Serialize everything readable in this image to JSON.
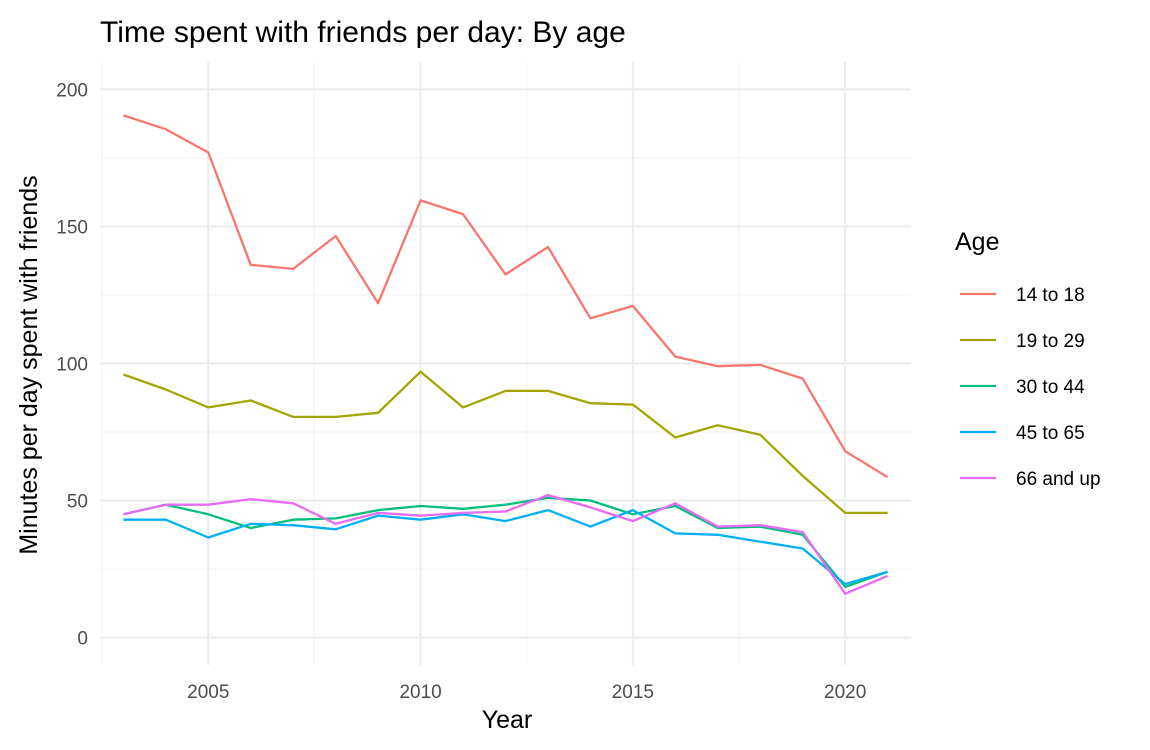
{
  "chart_data": {
    "type": "line",
    "title": "Time spent with friends per day: By age",
    "xlabel": "Year",
    "ylabel": "Minutes per day spent with friends",
    "xlim": [
      2002.45,
      2021.55
    ],
    "ylim": [
      -10,
      210
    ],
    "x_ticks": [
      2005,
      2010,
      2015,
      2020
    ],
    "x_minor_ticks": [
      2002.5,
      2007.5,
      2012.5,
      2017.5
    ],
    "y_ticks": [
      0,
      50,
      100,
      150,
      200
    ],
    "y_minor_ticks": [
      25,
      75,
      125,
      175
    ],
    "grid": true,
    "legend": {
      "title": "Age",
      "position": "right"
    },
    "x": [
      2003,
      2004,
      2005,
      2006,
      2007,
      2008,
      2009,
      2010,
      2011,
      2012,
      2013,
      2014,
      2015,
      2016,
      2017,
      2018,
      2019,
      2020,
      2021
    ],
    "series": [
      {
        "name": "14 to 18",
        "color": "#F8766D",
        "values": [
          190.5,
          185.5,
          177,
          136,
          134.5,
          146.5,
          122,
          159.5,
          154.5,
          132.5,
          142.5,
          116.5,
          121,
          102.5,
          99,
          99.5,
          94.5,
          68,
          58.5
        ]
      },
      {
        "name": "19 to 29",
        "color": "#A3A500",
        "values": [
          96,
          90.5,
          84,
          86.5,
          80.5,
          80.5,
          82,
          97,
          84,
          90,
          90,
          85.5,
          85,
          73,
          77.5,
          74,
          59,
          45.5,
          45.5
        ]
      },
      {
        "name": "30 to 44",
        "color": "#00BF7D",
        "values": [
          45,
          48.5,
          45,
          40,
          43,
          43.5,
          46.5,
          48,
          47,
          48.5,
          51,
          50,
          45,
          48,
          40,
          40.5,
          37.5,
          18.5,
          24
        ]
      },
      {
        "name": "45 to 65",
        "color": "#00B0F6",
        "values": [
          43,
          43,
          36.5,
          41.5,
          41,
          39.5,
          44.5,
          43,
          45,
          42.5,
          46.5,
          40.5,
          46.5,
          38,
          37.5,
          35,
          32.5,
          19.5,
          24
        ]
      },
      {
        "name": "66 and up",
        "color": "#E76BF3",
        "values": [
          45,
          48.5,
          48.5,
          50.5,
          49,
          41.5,
          45.5,
          44.5,
          45.5,
          46,
          52,
          47.5,
          42.5,
          49,
          40.5,
          41,
          38.5,
          16,
          22.5
        ]
      }
    ]
  }
}
